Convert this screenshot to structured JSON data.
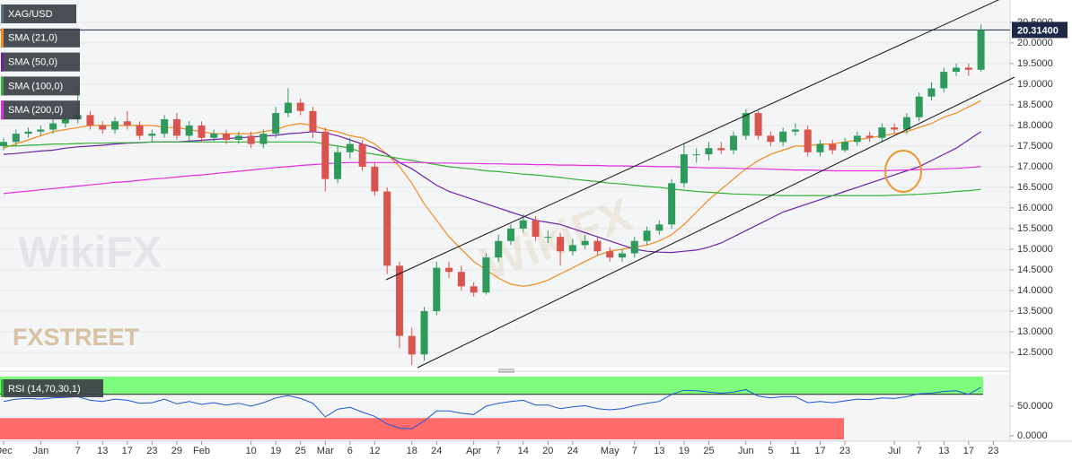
{
  "chart_data": [
    {
      "type": "candlestick",
      "name": "XAG/USD",
      "categories": [
        "Dec",
        null,
        null,
        "Jan",
        null,
        null,
        "7",
        null,
        "13",
        null,
        "17",
        null,
        "23",
        null,
        "29",
        null,
        "Feb",
        null,
        null,
        null,
        "10",
        null,
        "19",
        null,
        "25",
        null,
        "Mar",
        null,
        "6",
        null,
        "12",
        null,
        null,
        "18",
        null,
        "24",
        null,
        null,
        "Apr",
        null,
        "7",
        null,
        "14",
        null,
        "20",
        null,
        "24",
        null,
        null,
        "May",
        null,
        "7",
        null,
        "13",
        null,
        "19",
        null,
        "25",
        null,
        null,
        "Jun",
        null,
        "5",
        null,
        "11",
        null,
        "17",
        null,
        "23",
        null,
        null,
        null,
        "Jul",
        null,
        "7",
        null,
        "13",
        null,
        "17",
        null,
        "23"
      ],
      "open": [
        17.5,
        17.6,
        17.8,
        17.85,
        17.9,
        18.05,
        18.15,
        18.25,
        18.0,
        17.9,
        18.1,
        18.0,
        17.75,
        17.8,
        18.15,
        17.75,
        18.0,
        17.7,
        17.8,
        17.65,
        17.75,
        17.55,
        17.8,
        18.3,
        18.55,
        18.35,
        17.85,
        16.7,
        17.35,
        17.55,
        17.0,
        16.4,
        14.6,
        12.9,
        12.45,
        13.5,
        14.55,
        14.45,
        14.1,
        13.95,
        14.8,
        15.2,
        15.5,
        15.7,
        15.3,
        15.3,
        14.95,
        15.1,
        15.2,
        14.95,
        14.8,
        14.9,
        15.2,
        15.45,
        15.6,
        16.6,
        17.3,
        17.3,
        17.45,
        17.4,
        17.75,
        18.3,
        17.75,
        17.6,
        17.85,
        17.9,
        17.35,
        17.55,
        17.4,
        17.6,
        17.75,
        17.7,
        17.95,
        17.9,
        18.2,
        18.7,
        18.9,
        19.3,
        19.4,
        19.35,
        null
      ],
      "high": [
        17.7,
        17.9,
        17.95,
        18.0,
        18.15,
        18.3,
        18.9,
        18.35,
        18.1,
        18.2,
        18.35,
        18.1,
        17.9,
        18.25,
        18.3,
        18.1,
        18.1,
        17.9,
        17.9,
        17.85,
        17.85,
        17.9,
        18.45,
        18.9,
        18.65,
        18.45,
        17.95,
        17.5,
        17.7,
        17.65,
        17.1,
        16.5,
        14.7,
        13.1,
        13.6,
        14.7,
        14.7,
        14.6,
        14.2,
        14.9,
        15.35,
        15.6,
        15.85,
        15.8,
        15.45,
        15.4,
        15.25,
        15.35,
        15.3,
        15.05,
        15.0,
        15.3,
        15.55,
        15.7,
        16.7,
        17.55,
        17.45,
        17.6,
        17.6,
        17.85,
        18.4,
        18.35,
        17.85,
        17.95,
        18.05,
        18.0,
        17.65,
        17.65,
        17.7,
        17.85,
        17.85,
        18.05,
        18.05,
        18.3,
        18.8,
        19.05,
        19.4,
        19.5,
        19.5,
        20.45,
        null
      ],
      "low": [
        17.4,
        17.5,
        17.7,
        17.75,
        17.8,
        17.95,
        18.05,
        17.9,
        17.8,
        17.8,
        17.9,
        17.65,
        17.6,
        17.7,
        17.65,
        17.6,
        17.6,
        17.6,
        17.55,
        17.55,
        17.45,
        17.45,
        17.7,
        18.2,
        18.25,
        17.7,
        16.4,
        16.6,
        17.2,
        16.9,
        16.3,
        14.4,
        12.6,
        12.2,
        12.3,
        13.4,
        14.3,
        14.0,
        13.85,
        13.9,
        14.7,
        15.1,
        15.4,
        15.2,
        15.15,
        14.6,
        14.85,
        15.0,
        14.85,
        14.7,
        14.7,
        14.8,
        15.1,
        15.35,
        15.5,
        16.5,
        17.1,
        17.15,
        17.3,
        17.3,
        17.65,
        17.65,
        17.5,
        17.5,
        17.75,
        17.25,
        17.25,
        17.3,
        17.35,
        17.5,
        17.6,
        17.6,
        17.8,
        17.8,
        18.1,
        18.6,
        18.8,
        19.2,
        19.2,
        19.3,
        null
      ],
      "close": [
        17.6,
        17.8,
        17.85,
        17.9,
        18.05,
        18.15,
        18.25,
        18.0,
        17.9,
        18.1,
        18.0,
        17.75,
        17.8,
        18.15,
        17.75,
        18.0,
        17.7,
        17.8,
        17.65,
        17.75,
        17.55,
        17.8,
        18.3,
        18.55,
        18.35,
        17.85,
        16.7,
        17.35,
        17.55,
        17.0,
        16.4,
        14.6,
        12.9,
        12.45,
        13.5,
        14.55,
        14.45,
        14.1,
        13.95,
        14.8,
        15.2,
        15.5,
        15.7,
        15.3,
        15.3,
        14.95,
        15.1,
        15.2,
        14.95,
        14.8,
        14.9,
        15.2,
        15.45,
        15.6,
        16.6,
        17.3,
        17.3,
        17.45,
        17.4,
        17.75,
        18.3,
        17.75,
        17.6,
        17.85,
        17.9,
        17.35,
        17.55,
        17.4,
        17.6,
        17.75,
        17.7,
        17.95,
        17.9,
        18.2,
        18.7,
        18.9,
        19.3,
        19.4,
        19.35,
        20.314,
        null
      ],
      "up_color": "#2e9a5c",
      "down_color": "#d9534f",
      "series": [
        {
          "name": "SMA (21,0)",
          "color": "#f28a1c",
          "values": [
            17.45,
            17.55,
            17.65,
            17.75,
            17.85,
            17.9,
            17.95,
            18.0,
            18.0,
            18.0,
            18.0,
            18.0,
            18.0,
            17.95,
            17.95,
            17.9,
            17.85,
            17.8,
            17.8,
            17.8,
            17.8,
            17.85,
            17.9,
            18.0,
            18.05,
            18.0,
            17.9,
            17.85,
            17.75,
            17.7,
            17.55,
            17.3,
            17.0,
            16.6,
            16.1,
            15.7,
            15.3,
            15.0,
            14.7,
            14.5,
            14.3,
            14.15,
            14.1,
            14.15,
            14.25,
            14.4,
            14.55,
            14.7,
            14.85,
            14.95,
            15.0,
            15.05,
            15.1,
            15.2,
            15.35,
            15.6,
            15.9,
            16.2,
            16.45,
            16.7,
            16.95,
            17.15,
            17.3,
            17.4,
            17.5,
            17.5,
            17.55,
            17.55,
            17.6,
            17.65,
            17.7,
            17.75,
            17.8,
            17.85,
            17.95,
            18.05,
            18.2,
            18.3,
            18.45,
            18.6,
            null
          ]
        },
        {
          "name": "SMA (50,0)",
          "color": "#6a22a8",
          "values": [
            17.3,
            17.32,
            17.35,
            17.38,
            17.4,
            17.45,
            17.48,
            17.5,
            17.52,
            17.55,
            17.57,
            17.58,
            17.6,
            17.6,
            17.6,
            17.62,
            17.64,
            17.66,
            17.68,
            17.7,
            17.72,
            17.74,
            17.76,
            17.8,
            17.82,
            17.85,
            17.82,
            17.75,
            17.65,
            17.55,
            17.45,
            17.3,
            17.1,
            16.95,
            16.75,
            16.55,
            16.4,
            16.3,
            16.2,
            16.1,
            16.0,
            15.9,
            15.8,
            15.7,
            15.65,
            15.6,
            15.5,
            15.4,
            15.3,
            15.2,
            15.1,
            15.0,
            14.95,
            14.93,
            14.92,
            14.95,
            14.98,
            15.05,
            15.15,
            15.3,
            15.45,
            15.6,
            15.75,
            15.9,
            16.0,
            16.1,
            16.2,
            16.3,
            16.4,
            16.5,
            16.6,
            16.7,
            16.8,
            16.9,
            17.0,
            17.15,
            17.3,
            17.45,
            17.65,
            17.85,
            null
          ]
        },
        {
          "name": "SMA (100,0)",
          "color": "#34b034",
          "values": [
            17.5,
            17.5,
            17.52,
            17.53,
            17.55,
            17.55,
            17.56,
            17.57,
            17.57,
            17.58,
            17.58,
            17.59,
            17.6,
            17.6,
            17.6,
            17.6,
            17.6,
            17.6,
            17.6,
            17.6,
            17.6,
            17.6,
            17.6,
            17.6,
            17.6,
            17.6,
            17.55,
            17.5,
            17.45,
            17.35,
            17.3,
            17.25,
            17.2,
            17.15,
            17.1,
            17.05,
            17.0,
            16.97,
            16.94,
            16.9,
            16.88,
            16.85,
            16.82,
            16.8,
            16.77,
            16.74,
            16.7,
            16.67,
            16.64,
            16.6,
            16.58,
            16.55,
            16.52,
            16.5,
            16.46,
            16.43,
            16.4,
            16.38,
            16.36,
            16.34,
            16.33,
            16.32,
            16.31,
            16.3,
            16.3,
            16.3,
            16.3,
            16.3,
            16.3,
            16.3,
            16.3,
            16.3,
            16.31,
            16.32,
            16.33,
            16.35,
            16.37,
            16.4,
            16.42,
            16.45,
            null
          ]
        },
        {
          "name": "SMA (200,0)",
          "color": "#e22ee0",
          "values": [
            16.35,
            16.38,
            16.41,
            16.44,
            16.47,
            16.5,
            16.53,
            16.56,
            16.59,
            16.62,
            16.64,
            16.67,
            16.7,
            16.72,
            16.75,
            16.78,
            16.8,
            16.83,
            16.86,
            16.89,
            16.92,
            16.95,
            16.98,
            17.0,
            17.03,
            17.05,
            17.07,
            17.09,
            17.1,
            17.1,
            17.1,
            17.1,
            17.1,
            17.1,
            17.1,
            17.09,
            17.09,
            17.08,
            17.08,
            17.07,
            17.07,
            17.06,
            17.06,
            17.05,
            17.05,
            17.04,
            17.04,
            17.03,
            17.03,
            17.02,
            17.02,
            17.01,
            17.01,
            17.0,
            17.0,
            16.99,
            16.98,
            16.97,
            16.97,
            16.96,
            16.95,
            16.95,
            16.94,
            16.93,
            16.92,
            16.92,
            16.91,
            16.9,
            16.9,
            16.9,
            16.9,
            16.9,
            16.91,
            16.92,
            16.93,
            16.94,
            16.95,
            16.96,
            16.98,
            17.0,
            null
          ]
        }
      ],
      "ylim": [
        12.13,
        21.04
      ],
      "yticks": [
        {
          "value": 12.5,
          "label": "12.5000"
        },
        {
          "value": 13,
          "label": "13.0000"
        },
        {
          "value": 13.5,
          "label": "13.5000"
        },
        {
          "value": 14,
          "label": "14.0000"
        },
        {
          "value": 14.5,
          "label": "14.5000"
        },
        {
          "value": 15,
          "label": "15.0000"
        },
        {
          "value": 15.5,
          "label": "15.5000"
        },
        {
          "value": 16,
          "label": "16.0000"
        },
        {
          "value": 16.5,
          "label": "16.5000"
        },
        {
          "value": 17,
          "label": "17.0000"
        },
        {
          "value": 17.5,
          "label": "17.5000"
        },
        {
          "value": 18,
          "label": "18.0000"
        },
        {
          "value": 18.5,
          "label": "18.5000"
        },
        {
          "value": 19,
          "label": "19.0000"
        },
        {
          "value": 19.5,
          "label": "19.5000"
        },
        {
          "value": 20,
          "label": "20.0000"
        },
        {
          "value": 20.5,
          "label": "20.5000"
        }
      ],
      "last_price": {
        "value": 20.314,
        "label": "20.31400"
      },
      "watermarks": [
        "FXSTREET",
        "WikiFX"
      ]
    },
    {
      "type": "line",
      "series": [
        {
          "name": "RSI (14,70,30,1)",
          "color": "#1e55d6",
          "values": [
            58,
            62,
            63,
            62,
            64,
            65,
            66,
            60,
            58,
            62,
            60,
            55,
            56,
            62,
            54,
            58,
            53,
            56,
            52,
            55,
            50,
            56,
            64,
            68,
            63,
            55,
            32,
            45,
            48,
            40,
            33,
            20,
            13,
            12,
            25,
            42,
            42,
            38,
            36,
            50,
            55,
            58,
            60,
            52,
            52,
            46,
            49,
            51,
            46,
            44,
            46,
            51,
            55,
            58,
            70,
            77,
            76,
            74,
            72,
            74,
            78,
            67,
            64,
            66,
            66,
            56,
            58,
            56,
            59,
            62,
            61,
            64,
            63,
            66,
            71,
            72,
            75,
            76,
            70,
            82,
            null
          ]
        }
      ],
      "overbought": 70,
      "oversold": 30,
      "overbought_color": "#7dfc7d",
      "oversold_color": "#ff6b6b",
      "ylim": [
        -9,
        103
      ],
      "yticks": [
        {
          "value": 0,
          "label": "0.0000"
        },
        {
          "value": 50,
          "label": "50.0000"
        }
      ]
    }
  ]
}
